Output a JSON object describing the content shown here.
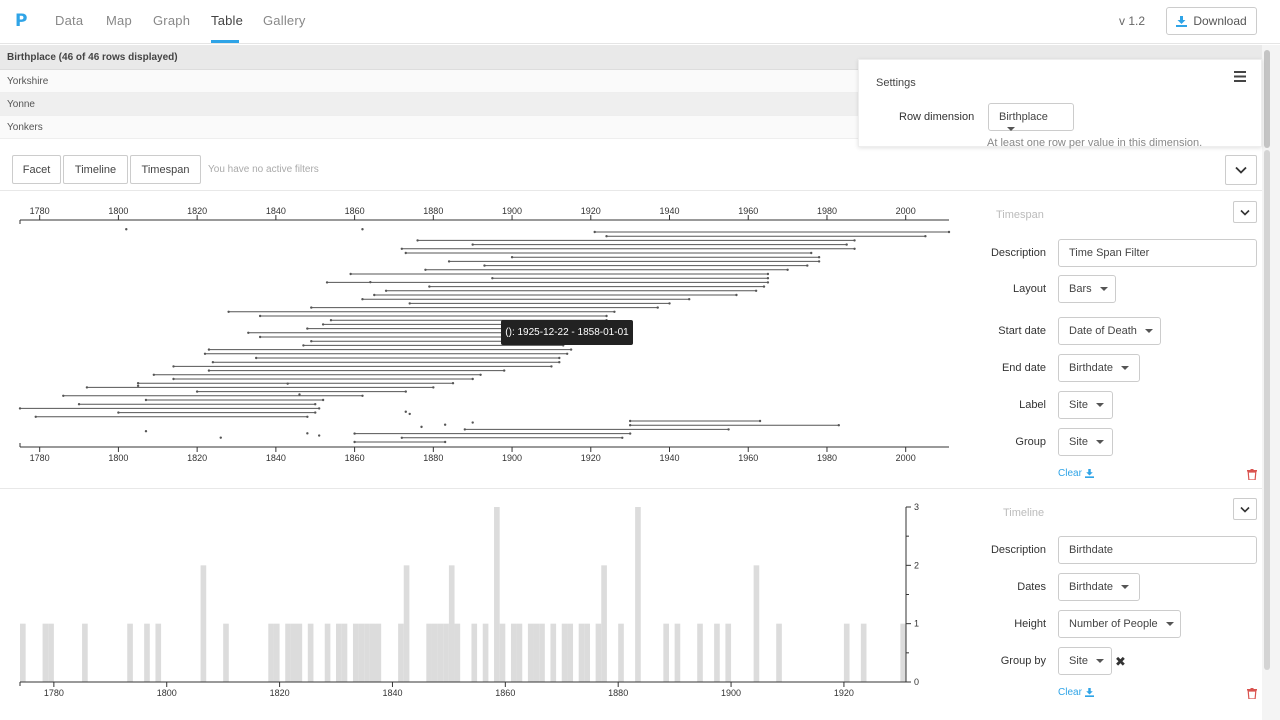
{
  "nav": {
    "logo": "P",
    "tabs": [
      "Data",
      "Map",
      "Graph",
      "Table",
      "Gallery"
    ],
    "active_tab": "Table",
    "version": "v 1.2",
    "download_label": "Download"
  },
  "table": {
    "header": "Birthplace (46 of 46 rows displayed)",
    "rows": [
      "Yorkshire",
      "Yonne",
      "Yonkers"
    ]
  },
  "settings": {
    "title": "Settings",
    "row_dimension_label": "Row dimension",
    "row_dimension_value": "Birthplace",
    "help": "At least one row per value in this dimension."
  },
  "filters": {
    "buttons": [
      "Facet",
      "Timeline",
      "Timespan"
    ],
    "status": "You have no active filters"
  },
  "timespan_panel": {
    "title": "Timespan",
    "description_label": "Description",
    "description_value": "Time Span Filter",
    "layout_label": "Layout",
    "layout_value": "Bars",
    "start_label": "Start date",
    "start_value": "Date of Death",
    "end_label": "End date",
    "end_value": "Birthdate",
    "label_label": "Label",
    "label_value": "Site",
    "group_label": "Group",
    "group_value": "Site",
    "clear_label": "Clear"
  },
  "timeline_panel": {
    "title": "Timeline",
    "description_label": "Description",
    "description_value": "Birthdate",
    "dates_label": "Dates",
    "dates_value": "Birthdate",
    "height_label": "Height",
    "height_value": "Number of People",
    "groupby_label": "Group by",
    "groupby_value": "Site",
    "clear_label": "Clear"
  },
  "tooltip": "(): 1925-12-22 - 1858-01-01",
  "colors": {
    "accent": "#2fa4e7",
    "bar": "#dcdcdc",
    "span": "#555555",
    "trash": "#d9534f"
  },
  "chart_data": [
    {
      "type": "timespan",
      "title": "Timespan",
      "xlim": [
        1775,
        2011
      ],
      "ticks": [
        1780,
        1800,
        1820,
        1840,
        1860,
        1880,
        1900,
        1920,
        1940,
        1960,
        1980,
        2000
      ],
      "spans": [
        [
          1921,
          2011
        ],
        [
          1924,
          2005
        ],
        [
          1876,
          1987
        ],
        [
          1890,
          1985
        ],
        [
          1872,
          1987
        ],
        [
          1873,
          1976
        ],
        [
          1900,
          1978
        ],
        [
          1884,
          1978
        ],
        [
          1893,
          1975
        ],
        [
          1878,
          1970
        ],
        [
          1859,
          1965
        ],
        [
          1895,
          1965
        ],
        [
          1853,
          1965
        ],
        [
          1879,
          1964
        ],
        [
          1868,
          1962
        ],
        [
          1865,
          1957
        ],
        [
          1862,
          1945
        ],
        [
          1874,
          1940
        ],
        [
          1849,
          1937
        ],
        [
          1828,
          1926
        ],
        [
          1836,
          1924
        ],
        [
          1854,
          1924
        ],
        [
          1852,
          1923
        ],
        [
          1848,
          1922
        ],
        [
          1833,
          1922
        ],
        [
          1836,
          1918
        ],
        [
          1849,
          1915
        ],
        [
          1847,
          1913
        ],
        [
          1823,
          1915
        ],
        [
          1822,
          1914
        ],
        [
          1835,
          1912
        ],
        [
          1824,
          1912
        ],
        [
          1814,
          1910
        ],
        [
          1823,
          1898
        ],
        [
          1809,
          1892
        ],
        [
          1814,
          1890
        ],
        [
          1805,
          1885
        ],
        [
          1792,
          1880
        ],
        [
          1820,
          1873
        ],
        [
          1786,
          1862
        ],
        [
          1807,
          1852
        ],
        [
          1790,
          1850
        ],
        [
          1775,
          1851
        ],
        [
          1800,
          1850
        ],
        [
          1779,
          1848
        ],
        [
          1930,
          1963
        ],
        [
          1930,
          1983
        ],
        [
          1888,
          1955
        ],
        [
          1860,
          1930
        ],
        [
          1872,
          1928
        ],
        [
          1860,
          1883
        ]
      ],
      "points": [
        [
          1802,
          0.015
        ],
        [
          1862,
          0.015
        ],
        [
          1864,
          0.26
        ],
        [
          1843,
          0.73
        ],
        [
          1805,
          0.74
        ],
        [
          1846,
          0.78
        ],
        [
          1873,
          0.86
        ],
        [
          1874,
          0.87
        ],
        [
          1877,
          0.93
        ],
        [
          1883,
          0.92
        ],
        [
          1890,
          0.91
        ],
        [
          1807,
          0.95
        ],
        [
          1848,
          0.96
        ],
        [
          1851,
          0.97
        ],
        [
          1826,
          0.98
        ]
      ]
    },
    {
      "type": "bar",
      "title": "Timeline",
      "xlim": [
        1774,
        1931
      ],
      "ticks": [
        1780,
        1800,
        1820,
        1840,
        1860,
        1880,
        1900,
        1920
      ],
      "ylim": [
        0,
        3
      ],
      "yticks": [
        0,
        1,
        2,
        3
      ],
      "bin_years": 1,
      "values": [
        [
          1774,
          1
        ],
        [
          1778,
          1
        ],
        [
          1779,
          1
        ],
        [
          1785,
          1
        ],
        [
          1793,
          1
        ],
        [
          1796,
          1
        ],
        [
          1798,
          1
        ],
        [
          1806,
          2
        ],
        [
          1810,
          1
        ],
        [
          1818,
          1
        ],
        [
          1819,
          1
        ],
        [
          1821,
          1
        ],
        [
          1822,
          1
        ],
        [
          1823,
          1
        ],
        [
          1825,
          1
        ],
        [
          1828,
          1
        ],
        [
          1830,
          1
        ],
        [
          1831,
          1
        ],
        [
          1833,
          1
        ],
        [
          1834,
          1
        ],
        [
          1835,
          1
        ],
        [
          1836,
          1
        ],
        [
          1837,
          1
        ],
        [
          1841,
          1
        ],
        [
          1842,
          2
        ],
        [
          1846,
          1
        ],
        [
          1847,
          1
        ],
        [
          1848,
          1
        ],
        [
          1849,
          1
        ],
        [
          1850,
          2
        ],
        [
          1851,
          1
        ],
        [
          1854,
          1
        ],
        [
          1856,
          1
        ],
        [
          1858,
          3
        ],
        [
          1859,
          1
        ],
        [
          1861,
          1
        ],
        [
          1862,
          1
        ],
        [
          1864,
          1
        ],
        [
          1865,
          1
        ],
        [
          1866,
          1
        ],
        [
          1868,
          1
        ],
        [
          1870,
          1
        ],
        [
          1871,
          1
        ],
        [
          1873,
          1
        ],
        [
          1874,
          1
        ],
        [
          1876,
          1
        ],
        [
          1877,
          2
        ],
        [
          1880,
          1
        ],
        [
          1883,
          3
        ],
        [
          1888,
          1
        ],
        [
          1890,
          1
        ],
        [
          1894,
          1
        ],
        [
          1897,
          1
        ],
        [
          1899,
          1
        ],
        [
          1904,
          2
        ],
        [
          1908,
          1
        ],
        [
          1920,
          1
        ],
        [
          1923,
          1
        ],
        [
          1930,
          1
        ]
      ]
    }
  ]
}
